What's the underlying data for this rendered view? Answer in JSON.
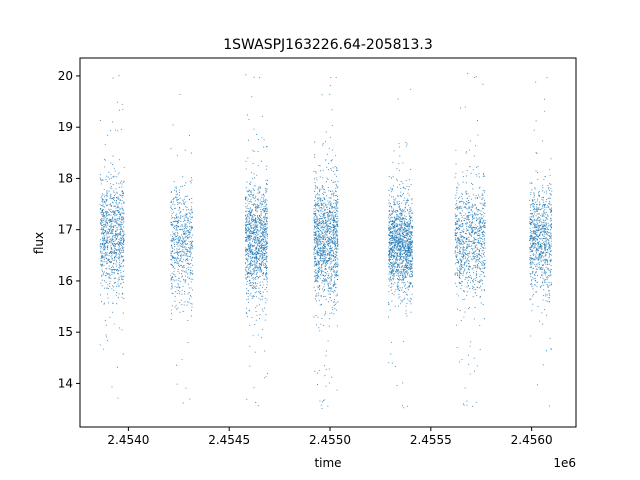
{
  "chart_data": {
    "type": "scatter",
    "title": "1SWASPJ163226.64-205813.3",
    "xlabel": "time",
    "ylabel": "flux",
    "x_offset_label": "1e6",
    "xlim": [
      2.45376,
      2.45622
    ],
    "ylim": [
      13.15,
      20.35
    ],
    "xticks": [
      2.454,
      2.4545,
      2.455,
      2.4555,
      2.456
    ],
    "xtick_labels": [
      "2.4540",
      "2.4545",
      "2.4550",
      "2.4555",
      "2.4560"
    ],
    "yticks": [
      14,
      15,
      16,
      17,
      18,
      19,
      20
    ],
    "ytick_labels": [
      "14",
      "15",
      "16",
      "17",
      "18",
      "19",
      "20"
    ],
    "grid": false,
    "marker_color": "#1f77b4",
    "seasons": [
      {
        "x_start": 2.45386,
        "x_end": 2.45398,
        "center": 16.9,
        "spread": 0.55,
        "n": 900
      },
      {
        "x_start": 2.45421,
        "x_end": 2.45432,
        "center": 16.7,
        "spread": 0.55,
        "n": 600
      },
      {
        "x_start": 2.45458,
        "x_end": 2.45469,
        "center": 16.8,
        "spread": 0.55,
        "n": 1100
      },
      {
        "x_start": 2.45492,
        "x_end": 2.45504,
        "center": 16.8,
        "spread": 0.6,
        "n": 1200
      },
      {
        "x_start": 2.45529,
        "x_end": 2.45541,
        "center": 16.7,
        "spread": 0.45,
        "n": 1300
      },
      {
        "x_start": 2.45562,
        "x_end": 2.45577,
        "center": 16.8,
        "spread": 0.55,
        "n": 900
      },
      {
        "x_start": 2.45599,
        "x_end": 2.4561,
        "center": 16.8,
        "spread": 0.5,
        "n": 800
      }
    ]
  }
}
